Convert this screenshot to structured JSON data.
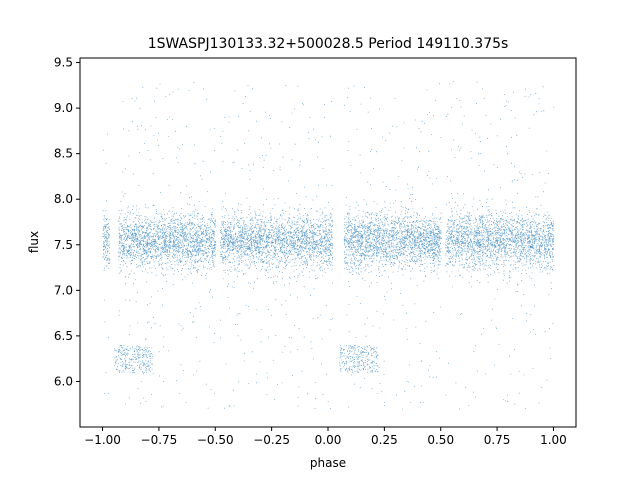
{
  "chart_data": {
    "type": "scatter",
    "title": "1SWASPJ130133.32+500028.5 Period 149110.375s",
    "xlabel": "phase",
    "ylabel": "flux",
    "xlim": [
      -1.1,
      1.1
    ],
    "ylim": [
      5.5,
      9.55
    ],
    "xticks": [
      -1.0,
      -0.75,
      -0.5,
      -0.25,
      0.0,
      0.25,
      0.5,
      0.75,
      1.0
    ],
    "xtick_labels": [
      "−1.00",
      "−0.75",
      "−0.50",
      "−0.25",
      "0.00",
      "0.25",
      "0.50",
      "0.75",
      "1.00"
    ],
    "yticks": [
      6.0,
      6.5,
      7.0,
      7.5,
      8.0,
      8.5,
      9.0,
      9.5
    ],
    "ytick_labels": [
      "6.0",
      "6.5",
      "7.0",
      "7.5",
      "8.0",
      "8.5",
      "9.0",
      "9.5"
    ],
    "grid": false,
    "point_color": "#1f77b4",
    "series": [
      {
        "description_of_distribution": "dense band",
        "phase_range": [
          -1.0,
          1.0
        ],
        "flux_center": 7.55,
        "flux_spread": 0.15
      }
    ],
    "gaps": [
      [
        -0.97,
        -0.93
      ],
      [
        -0.5,
        -0.48
      ],
      [
        0.02,
        0.07
      ],
      [
        0.5,
        0.52
      ]
    ],
    "clumps": [
      {
        "phase_range": [
          -0.95,
          -0.78
        ],
        "flux_range": [
          6.1,
          6.4
        ]
      },
      {
        "phase_range": [
          0.05,
          0.22
        ],
        "flux_range": [
          6.1,
          6.4
        ]
      }
    ]
  }
}
